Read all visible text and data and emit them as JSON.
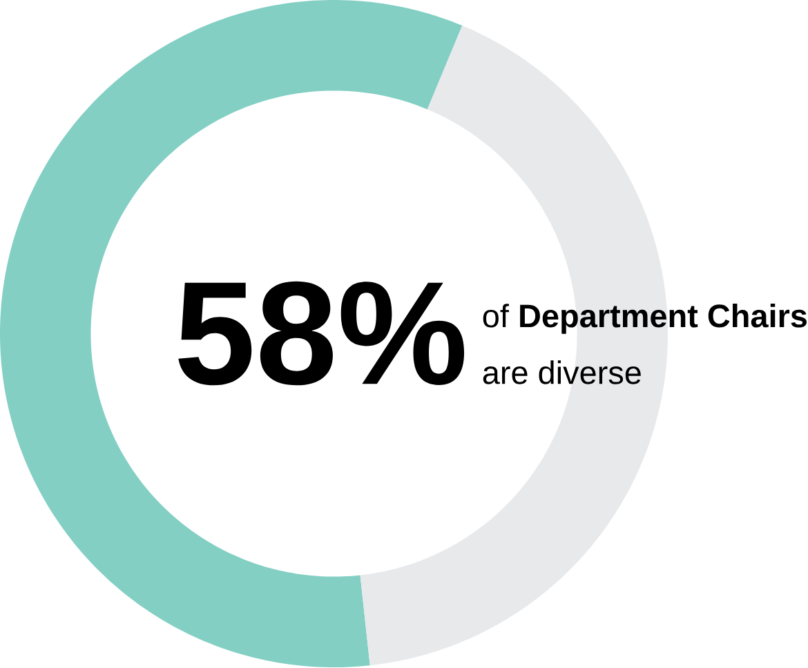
{
  "chart_data": {
    "type": "donut",
    "categories": [
      null,
      null
    ],
    "values": [
      58,
      42
    ],
    "colors": [
      "#83cfc4",
      "#e8e9eb"
    ],
    "annotations": [
      "58%",
      "of **Department Chairs**",
      "are diverse"
    ]
  }
}
